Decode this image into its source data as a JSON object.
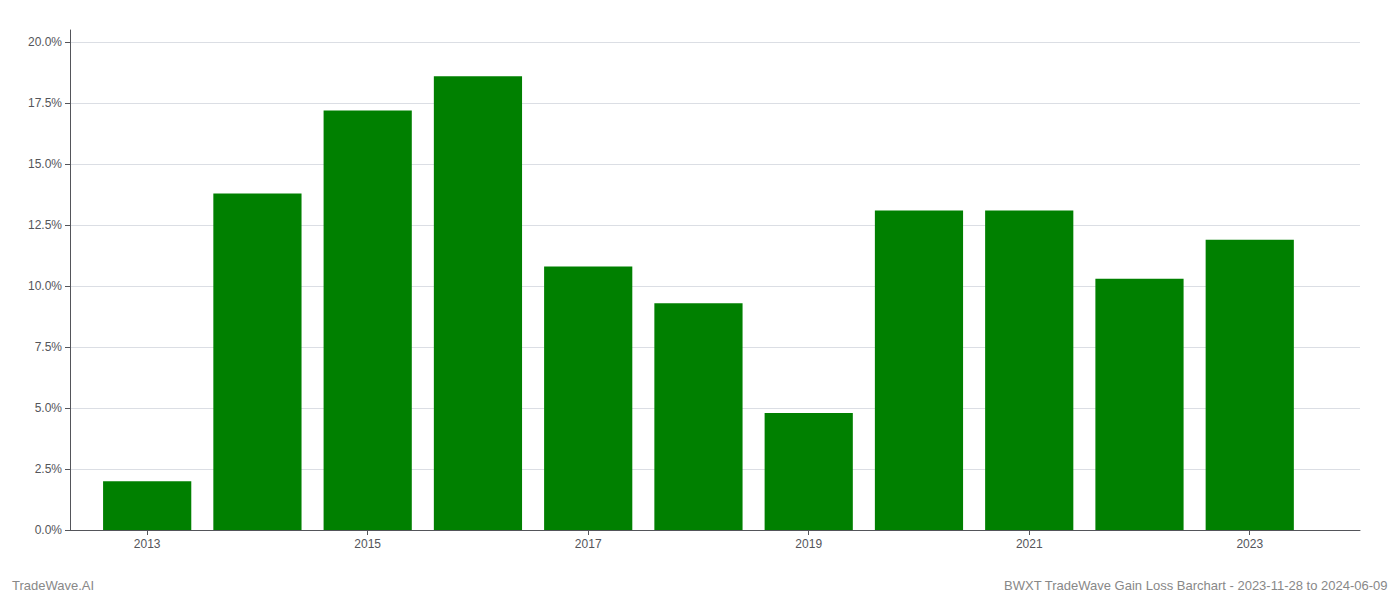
{
  "chart_data": {
    "type": "bar",
    "x": [
      2013,
      2014,
      2015,
      2016,
      2017,
      2018,
      2019,
      2020,
      2021,
      2022,
      2023
    ],
    "values": [
      0.02,
      0.138,
      0.172,
      0.186,
      0.108,
      0.093,
      0.048,
      0.131,
      0.131,
      0.103,
      0.119
    ],
    "color": "#008000",
    "xlim": [
      2012.3,
      2024.0
    ],
    "xticks": [
      2013,
      2015,
      2017,
      2019,
      2021,
      2023
    ],
    "ylim": [
      0.0,
      0.205
    ],
    "yticks": [
      {
        "value": 0.0,
        "label": "0.0%"
      },
      {
        "value": 0.025,
        "label": "2.5%"
      },
      {
        "value": 0.05,
        "label": "5.0%"
      },
      {
        "value": 0.075,
        "label": "7.5%"
      },
      {
        "value": 0.1,
        "label": "10.0%"
      },
      {
        "value": 0.125,
        "label": "12.5%"
      },
      {
        "value": 0.15,
        "label": "15.0%"
      },
      {
        "value": 0.175,
        "label": "17.5%"
      },
      {
        "value": 0.2,
        "label": "20.0%"
      }
    ],
    "grid": true,
    "annotations": [
      "TradeWave.AI",
      "BWXT TradeWave Gain Loss Barchart - 2023-11-28 to 2024-06-09"
    ]
  }
}
